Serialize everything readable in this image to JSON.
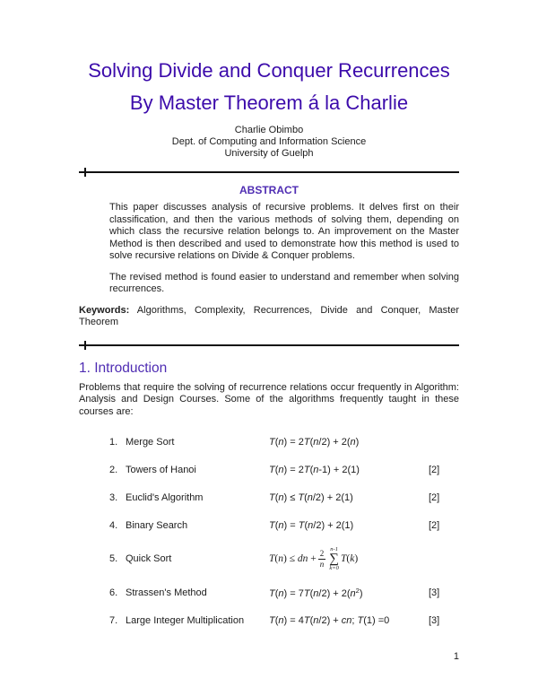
{
  "colors": {
    "title": "#3c0bab",
    "heading": "#4f2db3",
    "text": "#1c1c1c",
    "rule": "#111111"
  },
  "title": {
    "line1": "Solving Divide and Conquer Recurrences",
    "line2": "By Master Theorem á la Charlie"
  },
  "authors": {
    "name": "Charlie Obimbo",
    "dept": "Dept. of Computing and Information Science",
    "university": "University of Guelph"
  },
  "abstract": {
    "heading": "ABSTRACT",
    "para1": "This paper discusses analysis of recursive problems.  It delves first on their classification, and then the various methods of solving them, depending on which class the recursive relation belongs to.  An improvement on the Master Method is then described and used to demonstrate how this method is used to solve recursive relations on Divide & Conquer problems.",
    "para2": "The revised method is found easier to understand and remember when solving recurrences."
  },
  "keywords": {
    "label": "Keywords:",
    "text": " Algorithms, Complexity, Recurrences, Divide and Conquer, Master Theorem"
  },
  "intro": {
    "heading": "1. Introduction",
    "para": "Problems that require the solving of recurrence relations occur frequently in Algorithm: Analysis and Design Courses.  Some of the algorithms frequently taught in these courses are:"
  },
  "algorithms": {
    "items": [
      {
        "num": "1.",
        "name": "Merge Sort",
        "ref": "",
        "formula": [
          [
            "i",
            "T"
          ],
          [
            "r",
            "("
          ],
          [
            "i",
            "n"
          ],
          [
            "r",
            ") = 2"
          ],
          [
            "i",
            "T"
          ],
          [
            "r",
            "("
          ],
          [
            "i",
            "n"
          ],
          [
            "r",
            "/2) +  2("
          ],
          [
            "i",
            "n"
          ],
          [
            "r",
            ")"
          ]
        ]
      },
      {
        "num": "2.",
        "name": "Towers of Hanoi",
        "ref": "[2]",
        "formula": [
          [
            "i",
            "T"
          ],
          [
            "r",
            "("
          ],
          [
            "i",
            "n"
          ],
          [
            "r",
            ") = 2"
          ],
          [
            "i",
            "T"
          ],
          [
            "r",
            "("
          ],
          [
            "i",
            "n"
          ],
          [
            "r",
            "-1) +  2(1)"
          ]
        ]
      },
      {
        "num": "3.",
        "name": "Euclid's Algorithm",
        "ref": "[2]",
        "formula": [
          [
            "i",
            "T"
          ],
          [
            "r",
            "("
          ],
          [
            "i",
            "n"
          ],
          [
            "r",
            ") ≤ "
          ],
          [
            "i",
            "T"
          ],
          [
            "r",
            "("
          ],
          [
            "i",
            "n"
          ],
          [
            "r",
            "/2) + 2(1)"
          ]
        ]
      },
      {
        "num": "4.",
        "name": "Binary Search",
        "ref": "[2]",
        "formula": [
          [
            "i",
            "T"
          ],
          [
            "r",
            "("
          ],
          [
            "i",
            "n"
          ],
          [
            "r",
            ") = "
          ],
          [
            "i",
            "T"
          ],
          [
            "r",
            "("
          ],
          [
            "i",
            "n"
          ],
          [
            "r",
            "/2) +  2(1)"
          ]
        ]
      },
      {
        "num": "5.",
        "name": "Quick Sort",
        "ref": "",
        "quicksort": {
          "pre": [
            [
              "i",
              "T"
            ],
            [
              "r",
              "("
            ],
            [
              "i",
              "n"
            ],
            [
              "r",
              ") ≤ "
            ],
            [
              "i",
              "dn"
            ],
            [
              "r",
              " + "
            ]
          ],
          "frac_num": "2",
          "frac_den": "n",
          "sum_top": "n-1",
          "sum_sigma": "∑",
          "sum_bot": "k=0",
          "post": [
            [
              "i",
              "T"
            ],
            [
              "r",
              "("
            ],
            [
              "i",
              "k"
            ],
            [
              "r",
              ")"
            ]
          ]
        }
      },
      {
        "num": "6.",
        "name": "Strassen's Method",
        "ref": "[3]",
        "formula": [
          [
            "i",
            "T"
          ],
          [
            "r",
            "("
          ],
          [
            "i",
            "n"
          ],
          [
            "r",
            ") = 7"
          ],
          [
            "i",
            "T"
          ],
          [
            "r",
            "("
          ],
          [
            "i",
            "n"
          ],
          [
            "r",
            "/2) +  2("
          ],
          [
            "i",
            "n"
          ],
          [
            "sup",
            "2"
          ],
          [
            "r",
            ")"
          ]
        ]
      },
      {
        "num": "7.",
        "name": "Large Integer Multiplication",
        "ref": "[3]",
        "formula": [
          [
            "i",
            "T"
          ],
          [
            "r",
            "("
          ],
          [
            "i",
            "n"
          ],
          [
            "r",
            ") = 4"
          ],
          [
            "i",
            "T"
          ],
          [
            "r",
            "("
          ],
          [
            "i",
            "n"
          ],
          [
            "r",
            "/2) + "
          ],
          [
            "i",
            "cn"
          ],
          [
            "r",
            "; "
          ],
          [
            "i",
            "T"
          ],
          [
            "r",
            "(1) =0"
          ]
        ]
      }
    ]
  },
  "page_number": "1"
}
